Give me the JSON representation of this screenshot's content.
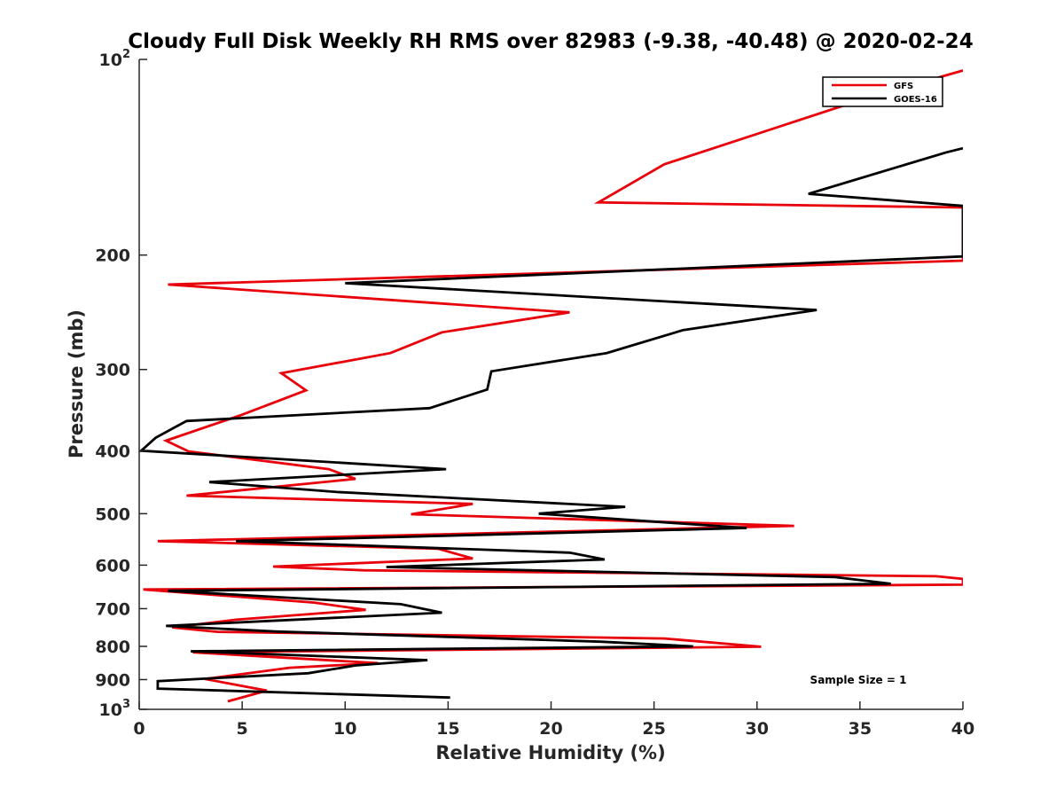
{
  "chart_data": {
    "type": "line",
    "title": "Cloudy Full Disk Weekly RH RMS over 82983 (-9.38, -40.48) @ 2020-02-24",
    "xlabel": "Relative Humidity (%)",
    "ylabel": "Pressure (mb)",
    "xlim": [
      0,
      40
    ],
    "ylim": [
      100,
      1000
    ],
    "yscale": "log",
    "y_reversed": true,
    "grid": false,
    "legend_position": "top-right",
    "x_ticks": [
      "0",
      "5",
      "10",
      "15",
      "20",
      "25",
      "30",
      "35",
      "40"
    ],
    "y_ticks": [
      {
        "value": 100,
        "base": "10",
        "exp": "2"
      },
      {
        "value": 200,
        "label": "200"
      },
      {
        "value": 300,
        "label": "300"
      },
      {
        "value": 400,
        "label": "400"
      },
      {
        "value": 500,
        "label": "500"
      },
      {
        "value": 600,
        "label": "600"
      },
      {
        "value": 700,
        "label": "700"
      },
      {
        "value": 800,
        "label": "800"
      },
      {
        "value": 900,
        "label": "900"
      },
      {
        "value": 1000,
        "base": "10",
        "exp": "3"
      }
    ],
    "annotation": "Sample Size = 1",
    "series": [
      {
        "name": "GFS",
        "color": "#e8000b",
        "points": [
          [
            40,
            104
          ],
          [
            35.2,
            115
          ],
          [
            25.5,
            145
          ],
          [
            22.3,
            166
          ],
          [
            40,
            169
          ],
          [
            40,
            204
          ],
          [
            1.4,
            222
          ],
          [
            20.9,
            245
          ],
          [
            14.7,
            263
          ],
          [
            12.2,
            283
          ],
          [
            6.9,
            304
          ],
          [
            8.1,
            323
          ],
          [
            4.9,
            353
          ],
          [
            1.3,
            386
          ],
          [
            2.4,
            401
          ],
          [
            9.2,
            427
          ],
          [
            10.5,
            442
          ],
          [
            2.3,
            469
          ],
          [
            16.2,
            483
          ],
          [
            13.2,
            501
          ],
          [
            31.8,
            522
          ],
          [
            0.9,
            551
          ],
          [
            14.5,
            566
          ],
          [
            16.2,
            586
          ],
          [
            6.5,
            603
          ],
          [
            10.9,
            611
          ],
          [
            38.7,
            624
          ],
          [
            40,
            630
          ],
          [
            40,
            643
          ],
          [
            0.2,
            654
          ],
          [
            8.5,
            685
          ],
          [
            11.0,
            703
          ],
          [
            4.7,
            728
          ],
          [
            1.6,
            748
          ],
          [
            3.8,
            760
          ],
          [
            25.5,
            778
          ],
          [
            30.2,
            801
          ],
          [
            2.6,
            817
          ],
          [
            11.6,
            849
          ],
          [
            7.3,
            863
          ],
          [
            3.2,
            898
          ],
          [
            6.2,
            936
          ],
          [
            4.3,
            972
          ]
        ]
      },
      {
        "name": "GOES-16",
        "color": "#000000",
        "points": [
          [
            40,
            137
          ],
          [
            39.2,
            139
          ],
          [
            32.5,
            161
          ],
          [
            40,
            168
          ],
          [
            40,
            201
          ],
          [
            10.0,
            221
          ],
          [
            32.9,
            243
          ],
          [
            26.4,
            261
          ],
          [
            22.7,
            283
          ],
          [
            17.1,
            302
          ],
          [
            16.9,
            322
          ],
          [
            14.1,
            344
          ],
          [
            2.3,
            360
          ],
          [
            0.8,
            382
          ],
          [
            0.1,
            400
          ],
          [
            14.9,
            427
          ],
          [
            3.4,
            447
          ],
          [
            9.6,
            463
          ],
          [
            23.6,
            488
          ],
          [
            19.4,
            500
          ],
          [
            29.5,
            526
          ],
          [
            4.7,
            551
          ],
          [
            20.9,
            574
          ],
          [
            22.6,
            588
          ],
          [
            12.0,
            604
          ],
          [
            33.8,
            626
          ],
          [
            36.5,
            641
          ],
          [
            1.4,
            657
          ],
          [
            12.7,
            689
          ],
          [
            14.7,
            710
          ],
          [
            1.3,
            744
          ],
          [
            6.6,
            759
          ],
          [
            22.4,
            787
          ],
          [
            26.9,
            800
          ],
          [
            2.5,
            814
          ],
          [
            14.0,
            840
          ],
          [
            10.5,
            856
          ],
          [
            8.2,
            880
          ],
          [
            0.9,
            905
          ],
          [
            0.9,
            929
          ],
          [
            15.1,
            959
          ]
        ]
      }
    ]
  }
}
